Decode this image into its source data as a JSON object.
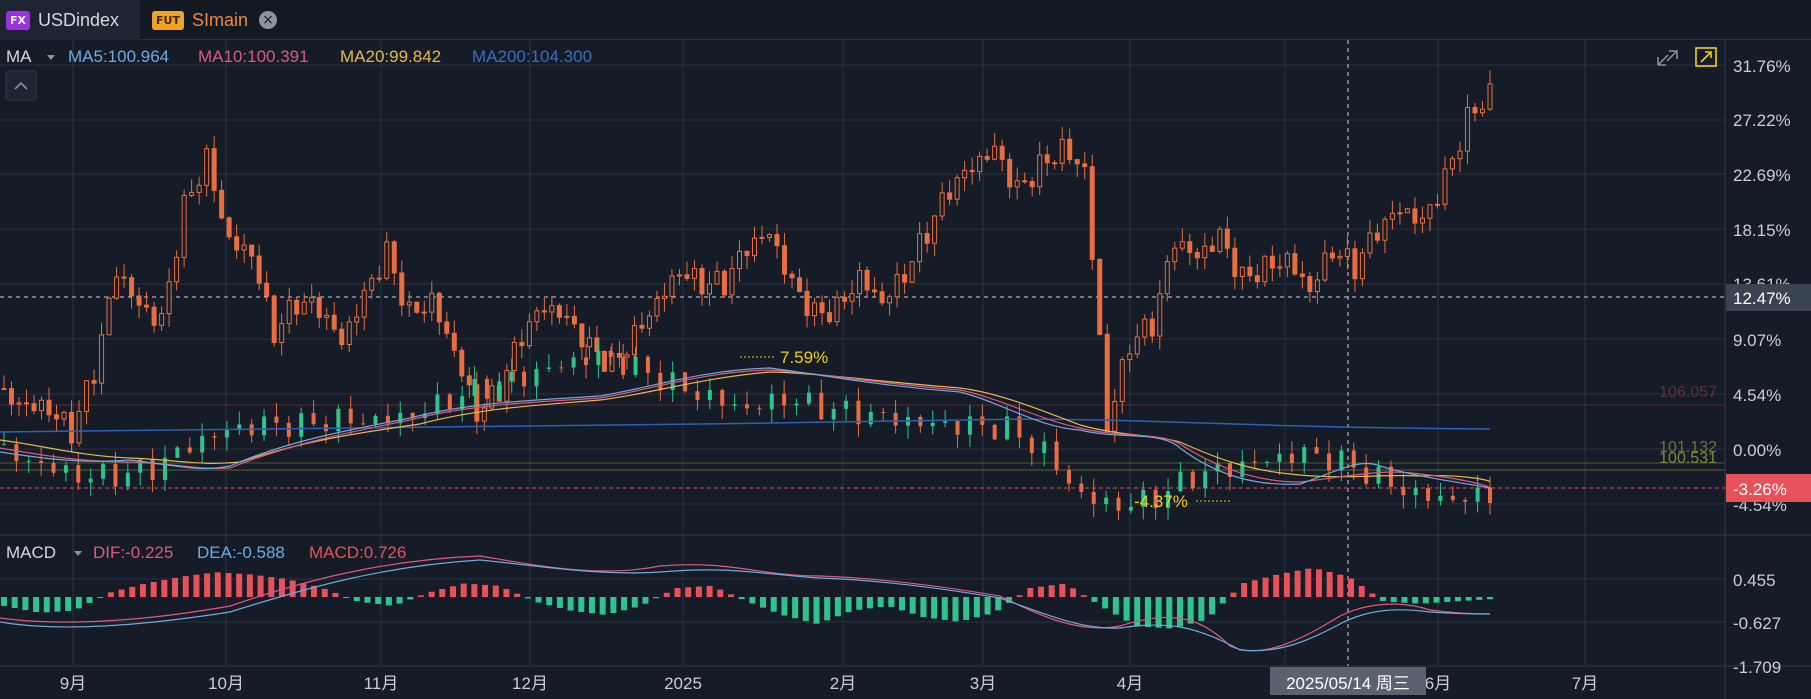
{
  "tabs": [
    {
      "badge": "FX",
      "label": "USDindex",
      "active": true
    },
    {
      "badge": "FUT",
      "label": "SImain",
      "active": false
    }
  ],
  "legend": {
    "ma_label": "MA",
    "ma5": "MA5:100.964",
    "ma10": "MA10:100.391",
    "ma20": "MA20:99.842",
    "ma200": "MA200:104.300"
  },
  "macd_legend": {
    "label": "MACD",
    "dif": "DIF:-0.225",
    "dea": "DEA:-0.588",
    "macd": "MACD:0.726"
  },
  "annotations": {
    "high_marker": "7.59%",
    "low_marker": "-4.37%",
    "price_line_faint_1": "106.057",
    "price_line_faint_2": "101.132",
    "price_line_faint_3": "100.531"
  },
  "price_axis": {
    "ticks": [
      "31.76%",
      "27.22%",
      "22.69%",
      "18.15%",
      "13.61%",
      "9.07%",
      "4.54%",
      "0.00%",
      "-4.54%"
    ],
    "crosshair_label": "12.47%",
    "current_label": "-3.26%"
  },
  "macd_axis": {
    "ticks": [
      "0.455",
      "-0.627",
      "-1.709"
    ]
  },
  "time_axis": {
    "ticks": [
      "9月",
      "10月",
      "11月",
      "12月",
      "2025",
      "2月",
      "3月",
      "4月",
      "5月",
      "6月",
      "7月"
    ],
    "crosshair_date": "2025/05/14 周三"
  },
  "colors": {
    "background": "#161c27",
    "up": "#2ec48d",
    "down": "#e86e3f",
    "ma5": "#6fa9e0",
    "ma10": "#e0577d",
    "ma20": "#e6b94c",
    "ma200": "#2e5fb7",
    "current_price_line": "#f04a5a"
  },
  "chart_data": [
    {
      "type": "candlestick",
      "name": "price",
      "x_ticks": [
        "9月",
        "10月",
        "11月",
        "12月",
        "2025",
        "2月",
        "3月",
        "4月",
        "5月",
        "6月",
        "7月"
      ],
      "y_ticks": [
        "31.76%",
        "27.22%",
        "22.69%",
        "18.15%",
        "13.61%",
        "9.07%",
        "4.54%",
        "0.00%",
        "-4.54%"
      ],
      "ylim": [
        -4.54,
        31.76
      ],
      "series": [
        {
          "name": "SImain",
          "values": [
            5.0,
            4.5,
            4.0,
            1.6,
            6.0,
            14.0,
            11.0,
            10.0,
            20.0,
            24.5,
            18.0,
            17.0,
            10.0,
            12.0,
            11.0,
            8.0,
            12.0,
            16.0,
            11.5,
            13.0,
            9.0,
            3.5,
            5.0,
            9.0,
            11.0,
            10.0,
            8.0,
            7.0,
            10.0,
            13.0,
            15.5,
            14.0,
            13.5,
            16.0,
            17.0,
            13.0,
            11.0,
            12.0,
            15.0,
            13.0,
            15.0,
            18.0,
            21.0,
            22.5,
            24.0,
            21.0,
            23.5,
            25.5,
            24.0,
            2.6,
            9.0,
            10.0,
            16.5,
            15.0,
            17.0,
            14.0,
            15.5,
            16.5,
            14.0,
            17.0,
            15.0,
            17.5,
            19.0,
            18.0,
            22.0,
            27.5,
            30.2
          ]
        },
        {
          "name": "USDindex",
          "values": [
            0.4,
            -0.4,
            -1.6,
            -2.0,
            -2.0,
            -0.5,
            0.7,
            1.5,
            2.0,
            3.0,
            3.2,
            3.6,
            4.5,
            5.0,
            5.3,
            6.1,
            7.0,
            6.5,
            5.7,
            5.0,
            4.2,
            4.8,
            3.5,
            2.5,
            1.6,
            1.2,
            1.5,
            1.8,
            0.4,
            -3.0,
            -4.0,
            -3.7,
            -2.5,
            -2.3,
            -1.8,
            -1.0,
            -1.2,
            -2.0,
            -3.0,
            -3.3,
            -3.26
          ]
        },
        {
          "name": "MA200",
          "values": [
            1.5,
            1.4,
            1.4,
            1.5,
            1.8,
            2.1,
            2.4,
            2.7,
            2.9,
            3.1,
            3.1,
            3.0,
            2.9,
            2.7,
            2.5,
            2.3,
            2.0,
            1.7
          ]
        }
      ]
    },
    {
      "type": "bar",
      "name": "MACD",
      "y_ticks": [
        "0.455",
        "-0.627",
        "-1.709"
      ],
      "ylim": [
        -1.709,
        0.8
      ],
      "values": [
        -0.2,
        -0.35,
        -0.3,
        0.1,
        0.3,
        0.45,
        0.55,
        0.5,
        0.4,
        0.2,
        -0.1,
        -0.2,
        0.1,
        0.3,
        0.25,
        -0.1,
        -0.3,
        -0.4,
        -0.2,
        0.2,
        0.25,
        -0.1,
        -0.4,
        -0.6,
        -0.3,
        -0.2,
        -0.45,
        -0.55,
        -0.35,
        0.2,
        0.3,
        -0.2,
        -0.65,
        -0.7,
        -0.5,
        0.3,
        0.5,
        0.65,
        0.45,
        -0.1,
        -0.15,
        -0.1,
        -0.05
      ]
    }
  ]
}
